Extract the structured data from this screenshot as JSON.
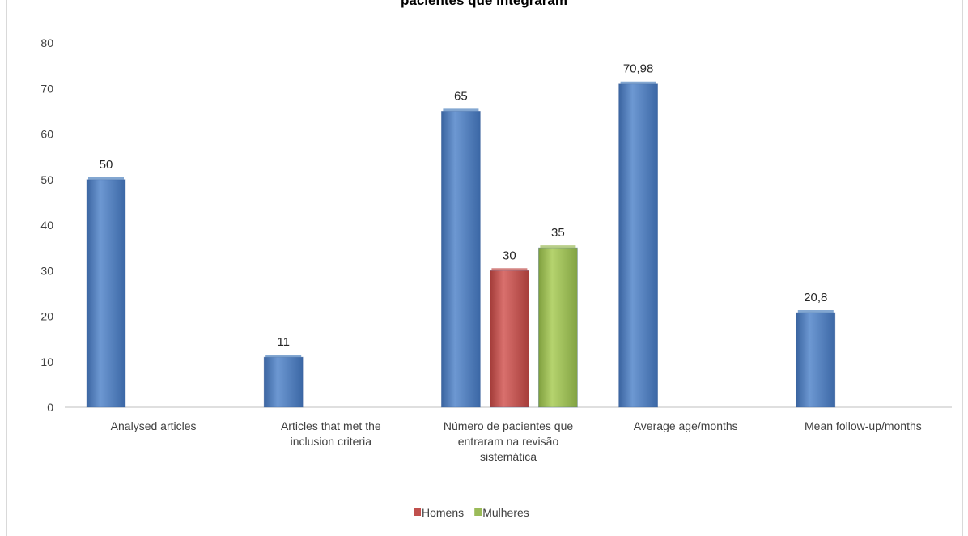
{
  "title_fragment": "pacientes que integraram",
  "chart_data": {
    "type": "bar",
    "ylim": [
      0,
      80
    ],
    "yticks": [
      0,
      10,
      20,
      30,
      40,
      50,
      60,
      70,
      80
    ],
    "grid": false,
    "legend_position": "bottom",
    "categories": [
      [
        "Analysed articles"
      ],
      [
        "Articles that met the",
        "inclusion criteria"
      ],
      [
        "Número de pacientes que",
        "entraram na revisão",
        "sistemática"
      ],
      [
        "Average age/months"
      ],
      [
        "Mean follow-up/months"
      ]
    ],
    "series": [
      {
        "color": "#4f81bd",
        "values": [
          50,
          11,
          65,
          70.98,
          20.8
        ],
        "labels": [
          "50",
          "11",
          "65",
          "70,98",
          "20,8"
        ]
      },
      {
        "name": "Homens",
        "color": "#c0504d",
        "values": [
          null,
          null,
          30,
          null,
          null
        ],
        "labels": [
          null,
          null,
          "30",
          null,
          null
        ]
      },
      {
        "name": "Mulheres",
        "color": "#9bbb59",
        "values": [
          null,
          null,
          35,
          null,
          null
        ],
        "labels": [
          null,
          null,
          "35",
          null,
          null
        ]
      }
    ]
  }
}
